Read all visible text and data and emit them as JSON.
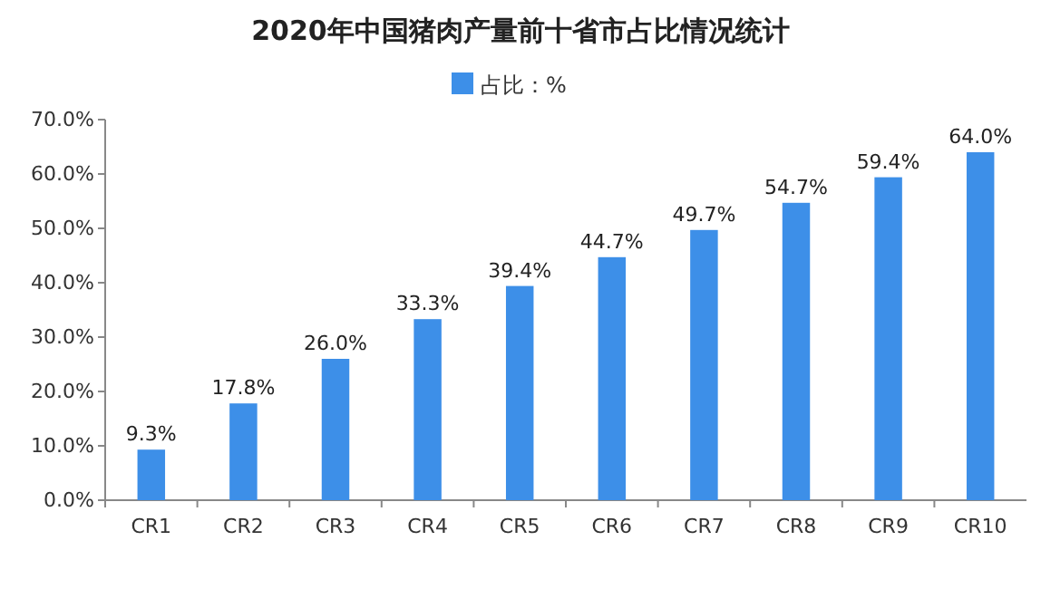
{
  "chart_data": {
    "type": "bar",
    "title": "2020年中国猪肉产量前十省市占比情况统计",
    "categories": [
      "CR1",
      "CR2",
      "CR3",
      "CR4",
      "CR5",
      "CR6",
      "CR7",
      "CR8",
      "CR9",
      "CR10"
    ],
    "series": [
      {
        "name": "占比：%",
        "color": "#3d8fe8",
        "values": [
          9.3,
          17.8,
          26.0,
          33.3,
          39.4,
          44.7,
          49.7,
          54.7,
          59.4,
          64.0
        ],
        "value_labels": [
          "9.3%",
          "17.8%",
          "26.0%",
          "33.3%",
          "39.4%",
          "44.7%",
          "49.7%",
          "54.7%",
          "59.4%",
          "64.0%"
        ]
      }
    ],
    "ylim": [
      0,
      70
    ],
    "yticks": [
      {
        "value": 0,
        "label": "0.0%"
      },
      {
        "value": 10,
        "label": "10.0%"
      },
      {
        "value": 20,
        "label": "20.0%"
      },
      {
        "value": 30,
        "label": "30.0%"
      },
      {
        "value": 40,
        "label": "40.0%"
      },
      {
        "value": 50,
        "label": "50.0%"
      },
      {
        "value": 60,
        "label": "60.0%"
      },
      {
        "value": 70,
        "label": "70.0%"
      }
    ],
    "grid": false,
    "legend": "top"
  }
}
